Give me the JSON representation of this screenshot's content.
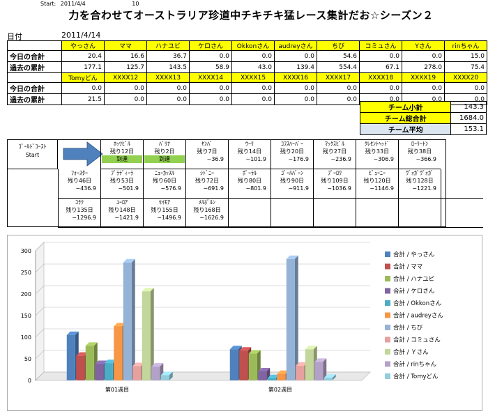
{
  "start": {
    "label": "Start:",
    "date": "2011/4/4",
    "count": "10"
  },
  "title": "力を合わせてオーストラリア珍道中チキチキ猛レース集計だお☆シーズン２",
  "date_label": "日付",
  "date_value": "2011/4/14",
  "row_labels": {
    "today": "今日の合計",
    "past": "過去の累計"
  },
  "group1": {
    "names": [
      "やっさん",
      "ママ",
      "ハナユビ",
      "ケロさん",
      "Okkonさん",
      "audreyさん",
      "ちび",
      "コミュさん",
      "Yさん",
      "rinちゃん"
    ],
    "today": [
      "20.4",
      "16.6",
      "36.7",
      "0.0",
      "0.0",
      "0.0",
      "54.6",
      "0.0",
      "0.0",
      "15.0"
    ],
    "past": [
      "177.1",
      "125.7",
      "143.5",
      "58.9",
      "43.0",
      "139.4",
      "554.4",
      "67.1",
      "278.0",
      "75.4"
    ]
  },
  "group2": {
    "names": [
      "Tomyどん",
      "XXXX12",
      "XXXX13",
      "XXXX14",
      "XXXX15",
      "XXXX16",
      "XXXX17",
      "XXXX18",
      "XXXX19",
      "XXXX20"
    ],
    "today": [
      "0.0",
      "0.0",
      "0.0",
      "0.0",
      "0.0",
      "0.0",
      "0.0",
      "0.0",
      "0.0",
      "0.0"
    ],
    "past": [
      "21.5",
      "0.0",
      "0.0",
      "0.0",
      "0.0",
      "0.0",
      "0.0",
      "0.0",
      "0.0",
      "0.0"
    ]
  },
  "team": {
    "subtotal_label": "チーム小計",
    "subtotal": "143.3",
    "total_label": "チーム総合計",
    "total": "1684.0",
    "avg_label": "チーム平均",
    "avg": "153.1"
  },
  "route": {
    "start_name": "ｺﾞｰﾙﾄﾞｺｰｽﾄ",
    "start_label": "Start",
    "stops": [
      {
        "name": "ﾎｯﾂﾋﾞﾙ",
        "days": "残り12日",
        "value": "",
        "arrived": "到達"
      },
      {
        "name": "ﾊﾞﾘﾅ",
        "days": "残り2日",
        "value": "",
        "arrived": "到達"
      },
      {
        "name": "ﾔﾝﾊﾞ",
        "days": "残り7日",
        "value": "−36.9",
        "arrived": ""
      },
      {
        "name": "ｳｰﾘ",
        "days": "残り14日",
        "value": "−101.9",
        "arrived": ""
      },
      {
        "name": "ｺﾌｽﾊｰﾊﾞｰ",
        "days": "残り20日",
        "value": "−176.9",
        "arrived": ""
      },
      {
        "name": "ﾏｯｸｽﾋﾞﾙ",
        "days": "残り27日",
        "value": "−236.9",
        "arrived": ""
      },
      {
        "name": "ｸﾚｾﾝﾄﾍｯﾄﾞ",
        "days": "残り33日",
        "value": "−306.9",
        "arrived": ""
      },
      {
        "name": "ﾛｰﾘｰﾄﾝ",
        "days": "残り38日",
        "value": "−366.9",
        "arrived": ""
      },
      {
        "name": "ﾌｫｰｽﾀｰ",
        "days": "残り46日",
        "value": "−436.9",
        "arrived": ""
      },
      {
        "name": "ﾌﾞﾗﾃﾞｨｰﾗ",
        "days": "残り53日",
        "value": "−501.9",
        "arrived": ""
      },
      {
        "name": "ﾆｭｰｶｯｽﾙ",
        "days": "残り60日",
        "value": "−576.9",
        "arrived": ""
      },
      {
        "name": "ｼﾄﾞﾆｰ",
        "days": "残り72日",
        "value": "−691.9",
        "arrived": ""
      },
      {
        "name": "ﾎﾟｰﾗﾙ",
        "days": "残り80日",
        "value": "−801.9",
        "arrived": ""
      },
      {
        "name": "ｺﾞｰﾙﾊﾞｰﾝ",
        "days": "残り90日",
        "value": "−911.9",
        "arrived": ""
      },
      {
        "name": "ﾌﾟｰﾛﾜ",
        "days": "残り109日",
        "value": "−1036.9",
        "arrived": ""
      },
      {
        "name": "ﾋﾞｭｰﾆｰ",
        "days": "残り120日",
        "value": "−1146.9",
        "arrived": ""
      },
      {
        "name": "ｳﾞｫｶﾞｳﾞｫｶﾞ",
        "days": "残り128日",
        "value": "−1221.9",
        "arrived": ""
      },
      {
        "name": "ｺﾗｸ",
        "days": "残り135日",
        "value": "−1296.9",
        "arrived": ""
      },
      {
        "name": "ﾕｰﾛｱ",
        "days": "残り148日",
        "value": "−1421.9",
        "arrived": ""
      },
      {
        "name": "ｾｲﾓｱ",
        "days": "残り155日",
        "value": "−1496.9",
        "arrived": ""
      },
      {
        "name": "ﾒﾙﾎﾞﾙﾝ",
        "days": "残り168日",
        "value": "−1626.9",
        "arrived": ""
      }
    ]
  },
  "chart_data": {
    "type": "bar",
    "categories": [
      "第01週目",
      "第02週目"
    ],
    "ylim": [
      0,
      300
    ],
    "yticks": [
      0,
      50,
      100,
      150,
      200,
      250,
      300
    ],
    "series": [
      {
        "name": "合計 / やっさん",
        "color": "#4f81bd",
        "values": [
          105,
          72
        ]
      },
      {
        "name": "合計 / ママ",
        "color": "#c0504d",
        "values": [
          57,
          69
        ]
      },
      {
        "name": "合計 / ハナユビ",
        "color": "#9bbb59",
        "values": [
          80,
          62
        ]
      },
      {
        "name": "合計 / ケロさん",
        "color": "#8064a2",
        "values": [
          38,
          21
        ]
      },
      {
        "name": "合計 / Okkonさん",
        "color": "#4bacc6",
        "values": [
          40,
          5
        ]
      },
      {
        "name": "合計 / audreyさん",
        "color": "#f79646",
        "values": [
          125,
          15
        ]
      },
      {
        "name": "合計 / ちび",
        "color": "#95b3d7",
        "values": [
          273,
          281
        ]
      },
      {
        "name": "合計 / コミュさん",
        "color": "#e6a19f",
        "values": [
          33,
          34
        ]
      },
      {
        "name": "合計 / Ｙさん",
        "color": "#c3d69b",
        "values": [
          206,
          72
        ]
      },
      {
        "name": "合計 / rinちゃん",
        "color": "#b3a2c7",
        "values": [
          32,
          43
        ]
      },
      {
        "name": "合計 / Tomyどん",
        "color": "#93cddd",
        "values": [
          12,
          6
        ]
      }
    ]
  }
}
